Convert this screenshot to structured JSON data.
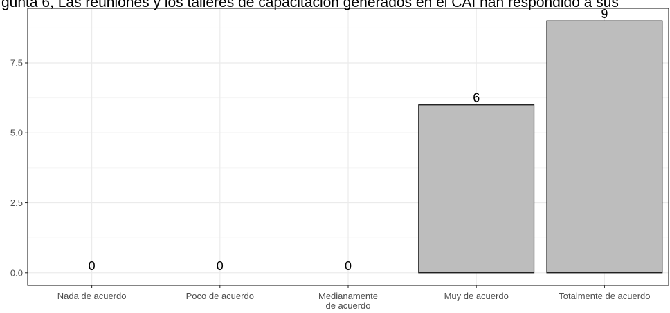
{
  "chart_data": {
    "type": "bar",
    "title": "gunta 6, Las reuniones y los talleres de capacitación generados en el CAI han respondido a sus",
    "categories": [
      [
        "Nada de acuerdo"
      ],
      [
        "Poco de acuerdo"
      ],
      [
        "Medianamente",
        "de acuerdo"
      ],
      [
        "Muy de acuerdo"
      ],
      [
        "Totalmente de acuerdo"
      ]
    ],
    "values": [
      0,
      0,
      0,
      6,
      9
    ],
    "data_labels": [
      "0",
      "0",
      "0",
      "6",
      "9"
    ],
    "y_ticks": [
      "0.0",
      "2.5",
      "5.0",
      "7.5"
    ],
    "ylim": [
      -0.45,
      9.45
    ],
    "xlabel": "",
    "ylabel": "",
    "grid": true,
    "colors": {
      "bar_fill": "#bdbdbd",
      "bar_stroke": "#000000",
      "grid_major": "#ebebeb",
      "grid_minor": "#f4f4f4",
      "panel_border": "#333333",
      "tick_text": "#4d4d4d",
      "label_text": "#000000"
    }
  }
}
